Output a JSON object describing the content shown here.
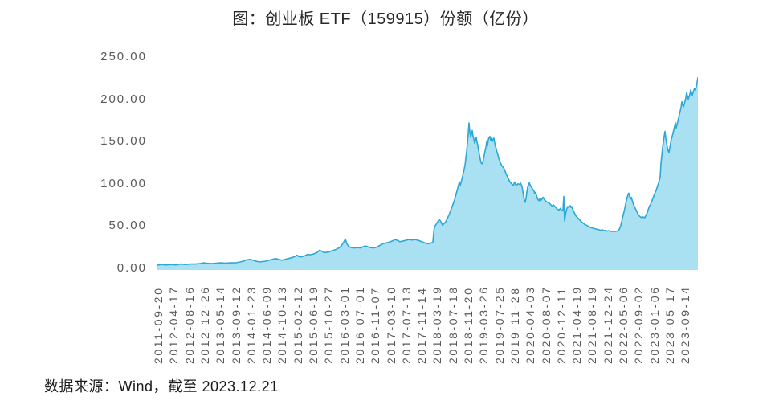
{
  "title": "图：创业板 ETF（159915）份额（亿份）",
  "source_note": "数据来源：Wind，截至 2023.12.21",
  "colors": {
    "area_fill": "#A9E0F2",
    "area_line": "#2BA8D5",
    "axis_label": "#595959",
    "title_text": "#282828"
  },
  "chart_data": {
    "type": "area",
    "title": "图：创业板 ETF（159915）份额（亿份）",
    "ylabel": "份额（亿份）",
    "ylim": [
      0,
      250
    ],
    "grid": false,
    "legend_position": "none",
    "y_tick_labels": [
      "250.00",
      "200.00",
      "150.00",
      "100.00",
      "50.00",
      "0.00"
    ],
    "y_tick_values": [
      250,
      200,
      150,
      100,
      50,
      0
    ],
    "x_tick_labels": [
      "2011-09-20",
      "2012-04-17",
      "2012-08-16",
      "2012-12-26",
      "2013-05-14",
      "2013-09-12",
      "2014-01-23",
      "2014-06-09",
      "2014-10-13",
      "2015-02-12",
      "2015-06-19",
      "2015-10-27",
      "2016-03-01",
      "2016-07-01",
      "2016-11-07",
      "2017-03-10",
      "2017-07-13",
      "2017-11-14",
      "2018-03-19",
      "2018-07-18",
      "2018-11-20",
      "2019-03-26",
      "2019-07-25",
      "2019-11-28",
      "2020-04-03",
      "2020-08-07",
      "2020-12-11",
      "2021-04-19",
      "2021-08-19",
      "2021-12-24",
      "2022-05-06",
      "2022-09-02",
      "2023-01-06",
      "2023-05-17",
      "2023-09-14"
    ],
    "x_range_dates": [
      "2011-09-20",
      "2023-12-21"
    ],
    "series_name": "创业板 ETF（159915）份额（亿份）",
    "series_x_unit": "plot-x offset 0–674 spanning 2011-09-20 → 2023-12-21",
    "series_points": [
      [
        0,
        5.5
      ],
      [
        6,
        6.5
      ],
      [
        12,
        6
      ],
      [
        18,
        6.5
      ],
      [
        24,
        6
      ],
      [
        30,
        7
      ],
      [
        36,
        6.5
      ],
      [
        42,
        7
      ],
      [
        48,
        7
      ],
      [
        54,
        7.5
      ],
      [
        58,
        8.5
      ],
      [
        62,
        8
      ],
      [
        68,
        7.5
      ],
      [
        74,
        8
      ],
      [
        80,
        8.5
      ],
      [
        86,
        8
      ],
      [
        92,
        8.5
      ],
      [
        98,
        8.5
      ],
      [
        104,
        9.5
      ],
      [
        108,
        10.5
      ],
      [
        112,
        12
      ],
      [
        116,
        12.5
      ],
      [
        120,
        11.5
      ],
      [
        124,
        10.5
      ],
      [
        128,
        9.5
      ],
      [
        132,
        10
      ],
      [
        136,
        10.5
      ],
      [
        140,
        11.5
      ],
      [
        144,
        12.5
      ],
      [
        148,
        13.5
      ],
      [
        152,
        12.5
      ],
      [
        156,
        11.5
      ],
      [
        160,
        12.5
      ],
      [
        164,
        13.5
      ],
      [
        168,
        14.5
      ],
      [
        172,
        16
      ],
      [
        175,
        17.5
      ],
      [
        177,
        16
      ],
      [
        180,
        15.5
      ],
      [
        184,
        16.5
      ],
      [
        188,
        18.5
      ],
      [
        191,
        18
      ],
      [
        194,
        18.5
      ],
      [
        197,
        19.5
      ],
      [
        200,
        21
      ],
      [
        203,
        23.5
      ],
      [
        206,
        22
      ],
      [
        209,
        20.5
      ],
      [
        212,
        21
      ],
      [
        215,
        21.5
      ],
      [
        218,
        22.5
      ],
      [
        221,
        23.5
      ],
      [
        224,
        24.5
      ],
      [
        227,
        26
      ],
      [
        230,
        28.5
      ],
      [
        233,
        33
      ],
      [
        235,
        36.5
      ],
      [
        237,
        31
      ],
      [
        239,
        28
      ],
      [
        242,
        26.5
      ],
      [
        246,
        26
      ],
      [
        250,
        26.5
      ],
      [
        254,
        26
      ],
      [
        257,
        27.5
      ],
      [
        260,
        28.5
      ],
      [
        263,
        27.5
      ],
      [
        266,
        26.5
      ],
      [
        270,
        26
      ],
      [
        274,
        27
      ],
      [
        278,
        29
      ],
      [
        282,
        31
      ],
      [
        286,
        32
      ],
      [
        290,
        33
      ],
      [
        294,
        34.5
      ],
      [
        297,
        36
      ],
      [
        300,
        35
      ],
      [
        303,
        33.5
      ],
      [
        306,
        34
      ],
      [
        310,
        35
      ],
      [
        314,
        36
      ],
      [
        318,
        35.5
      ],
      [
        322,
        36
      ],
      [
        326,
        35
      ],
      [
        330,
        33.5
      ],
      [
        334,
        32
      ],
      [
        338,
        31
      ],
      [
        342,
        32
      ],
      [
        344,
        33
      ],
      [
        345,
        44
      ],
      [
        346,
        51
      ],
      [
        348,
        54
      ],
      [
        350,
        57
      ],
      [
        352,
        60
      ],
      [
        354,
        57
      ],
      [
        356,
        53
      ],
      [
        358,
        55
      ],
      [
        360,
        57
      ],
      [
        362,
        61
      ],
      [
        364,
        65
      ],
      [
        366,
        70
      ],
      [
        368,
        75
      ],
      [
        371,
        83
      ],
      [
        373,
        90
      ],
      [
        375,
        97
      ],
      [
        377,
        104
      ],
      [
        378,
        100
      ],
      [
        380,
        107
      ],
      [
        382,
        115
      ],
      [
        384,
        124
      ],
      [
        385,
        132
      ],
      [
        386,
        140
      ],
      [
        387,
        150
      ],
      [
        388,
        161
      ],
      [
        389,
        174
      ],
      [
        390,
        163
      ],
      [
        391,
        157
      ],
      [
        392,
        161
      ],
      [
        393,
        165
      ],
      [
        394,
        158
      ],
      [
        395,
        155
      ],
      [
        396,
        150
      ],
      [
        397,
        153
      ],
      [
        398,
        157
      ],
      [
        399,
        151
      ],
      [
        400,
        147
      ],
      [
        401,
        141
      ],
      [
        402,
        136
      ],
      [
        403,
        131
      ],
      [
        404,
        127
      ],
      [
        405,
        125.5
      ],
      [
        406,
        127
      ],
      [
        407,
        131
      ],
      [
        408,
        136
      ],
      [
        409,
        141
      ],
      [
        410,
        145
      ],
      [
        411,
        152
      ],
      [
        412,
        147
      ],
      [
        413,
        154
      ],
      [
        414,
        157
      ],
      [
        415,
        158
      ],
      [
        416,
        153
      ],
      [
        417,
        156
      ],
      [
        418,
        152
      ],
      [
        419,
        155
      ],
      [
        420,
        156
      ],
      [
        421,
        150
      ],
      [
        422,
        146
      ],
      [
        423,
        143
      ],
      [
        424,
        139
      ],
      [
        425,
        136
      ],
      [
        426,
        132
      ],
      [
        427,
        130
      ],
      [
        428,
        127
      ],
      [
        430,
        123
      ],
      [
        432,
        121
      ],
      [
        434,
        117
      ],
      [
        435,
        114
      ],
      [
        436,
        112
      ],
      [
        437,
        110
      ],
      [
        438,
        108
      ],
      [
        440,
        104
      ],
      [
        442,
        102
      ],
      [
        444,
        100
      ],
      [
        445,
        102
      ],
      [
        446,
        104
      ],
      [
        447,
        101
      ],
      [
        448,
        100
      ],
      [
        450,
        102
      ],
      [
        452,
        101
      ],
      [
        453,
        103
      ],
      [
        455,
        99
      ],
      [
        456,
        93
      ],
      [
        457,
        87
      ],
      [
        458,
        82
      ],
      [
        459,
        80
      ],
      [
        460,
        85
      ],
      [
        461,
        92
      ],
      [
        462,
        98
      ],
      [
        463,
        100
      ],
      [
        464,
        103
      ],
      [
        465,
        101
      ],
      [
        466,
        99
      ],
      [
        468,
        96
      ],
      [
        470,
        93
      ],
      [
        471,
        90
      ],
      [
        472,
        92
      ],
      [
        473,
        88
      ],
      [
        474,
        85
      ],
      [
        475,
        83
      ],
      [
        476,
        82
      ],
      [
        477,
        84
      ],
      [
        478,
        82
      ],
      [
        480,
        84
      ],
      [
        481,
        86
      ],
      [
        482,
        85
      ],
      [
        483,
        83
      ],
      [
        485,
        81
      ],
      [
        487,
        80
      ],
      [
        489,
        79
      ],
      [
        491,
        77
      ],
      [
        493,
        75
      ],
      [
        494,
        77
      ],
      [
        495,
        76
      ],
      [
        496,
        75
      ],
      [
        497,
        74
      ],
      [
        498,
        73
      ],
      [
        499,
        72
      ],
      [
        500,
        71.5
      ],
      [
        501,
        71
      ],
      [
        502,
        72
      ],
      [
        503,
        73
      ],
      [
        504,
        71
      ],
      [
        505,
        70
      ],
      [
        506,
        71
      ],
      [
        507,
        87
      ],
      [
        508,
        58
      ],
      [
        509,
        65
      ],
      [
        510,
        70
      ],
      [
        511,
        73
      ],
      [
        512,
        75
      ],
      [
        513,
        74
      ],
      [
        514,
        75
      ],
      [
        515,
        76
      ],
      [
        516,
        74
      ],
      [
        517,
        75
      ],
      [
        518,
        72
      ],
      [
        519,
        70
      ],
      [
        520,
        68
      ],
      [
        521,
        66
      ],
      [
        522,
        64
      ],
      [
        523,
        63
      ],
      [
        525,
        61
      ],
      [
        527,
        59
      ],
      [
        529,
        57
      ],
      [
        531,
        55.5
      ],
      [
        533,
        54
      ],
      [
        535,
        53
      ],
      [
        537,
        52
      ],
      [
        539,
        51
      ],
      [
        541,
        50
      ],
      [
        543,
        49.5
      ],
      [
        545,
        49
      ],
      [
        547,
        48.5
      ],
      [
        549,
        48
      ],
      [
        551,
        47.5
      ],
      [
        553,
        47
      ],
      [
        555,
        47.5
      ],
      [
        557,
        46.5
      ],
      [
        559,
        47
      ],
      [
        561,
        46
      ],
      [
        563,
        46.5
      ],
      [
        565,
        46
      ],
      [
        567,
        45.5
      ],
      [
        569,
        46
      ],
      [
        571,
        45.5
      ],
      [
        573,
        46
      ],
      [
        575,
        46.5
      ],
      [
        576,
        48
      ],
      [
        577,
        50
      ],
      [
        578,
        53
      ],
      [
        579,
        57
      ],
      [
        580,
        61
      ],
      [
        581,
        65
      ],
      [
        582,
        69
      ],
      [
        583,
        73
      ],
      [
        584,
        78
      ],
      [
        585,
        82
      ],
      [
        586,
        86
      ],
      [
        587,
        89
      ],
      [
        588,
        91
      ],
      [
        589,
        87
      ],
      [
        590,
        84
      ],
      [
        591,
        86
      ],
      [
        592,
        83
      ],
      [
        593,
        80
      ],
      [
        594,
        77
      ],
      [
        595,
        75
      ],
      [
        596,
        73
      ],
      [
        597,
        71
      ],
      [
        598,
        69
      ],
      [
        599,
        67
      ],
      [
        600,
        65
      ],
      [
        601,
        64
      ],
      [
        602,
        63
      ],
      [
        603,
        62.5
      ],
      [
        604,
        62
      ],
      [
        605,
        63
      ],
      [
        606,
        62
      ],
      [
        607,
        62.5
      ],
      [
        608,
        62
      ],
      [
        609,
        64
      ],
      [
        610,
        66
      ],
      [
        611,
        68
      ],
      [
        612,
        71
      ],
      [
        613,
        74
      ],
      [
        614,
        76
      ],
      [
        615,
        77
      ],
      [
        616,
        80
      ],
      [
        617,
        82
      ],
      [
        618,
        85
      ],
      [
        619,
        87
      ],
      [
        620,
        90
      ],
      [
        621,
        92
      ],
      [
        622,
        94
      ],
      [
        623,
        97
      ],
      [
        624,
        100
      ],
      [
        625,
        103
      ],
      [
        626,
        106
      ],
      [
        627,
        110
      ],
      [
        628,
        126
      ],
      [
        629,
        135
      ],
      [
        630,
        144
      ],
      [
        631,
        152
      ],
      [
        632,
        158
      ],
      [
        633,
        164
      ],
      [
        634,
        156
      ],
      [
        635,
        150
      ],
      [
        636,
        145
      ],
      [
        637,
        141
      ],
      [
        638,
        139
      ],
      [
        639,
        144
      ],
      [
        640,
        150
      ],
      [
        641,
        155
      ],
      [
        642,
        158
      ],
      [
        643,
        162
      ],
      [
        644,
        166
      ],
      [
        645,
        170
      ],
      [
        646,
        174
      ],
      [
        647,
        168
      ],
      [
        648,
        172
      ],
      [
        649,
        176
      ],
      [
        650,
        180
      ],
      [
        651,
        184
      ],
      [
        652,
        188
      ],
      [
        653,
        192
      ],
      [
        654,
        199
      ],
      [
        655,
        196
      ],
      [
        656,
        193
      ],
      [
        657,
        196
      ],
      [
        658,
        200
      ],
      [
        659,
        204
      ],
      [
        660,
        210
      ],
      [
        661,
        206
      ],
      [
        662,
        202
      ],
      [
        663,
        205
      ],
      [
        664,
        208
      ],
      [
        665,
        213
      ],
      [
        666,
        210
      ],
      [
        667,
        207
      ],
      [
        668,
        210
      ],
      [
        669,
        213
      ],
      [
        670,
        215
      ],
      [
        671,
        213
      ],
      [
        672,
        217
      ],
      [
        673,
        222
      ],
      [
        674,
        228
      ]
    ]
  }
}
